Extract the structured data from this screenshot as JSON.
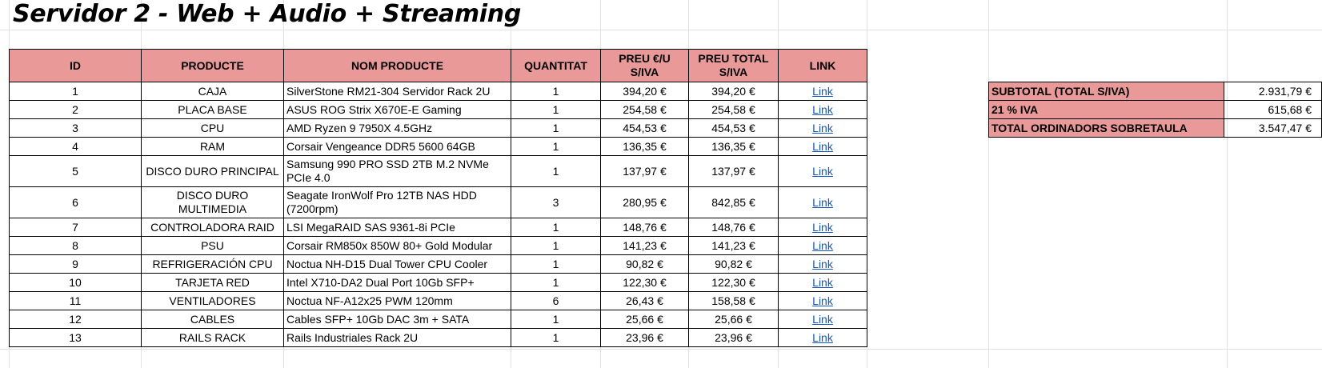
{
  "title": "Servidor 2 - Web + Audio + Streaming",
  "accent_color": "#ea9999",
  "link_color": "#1155cc",
  "table": {
    "headers": {
      "id": "ID",
      "producte": "PRODUCTE",
      "nom": "NOM PRODUCTE",
      "quantitat": "QUANTITAT",
      "preu_u": "PREU €/U S/IVA",
      "preu_total": "PREU TOTAL S/IVA",
      "link": "LINK"
    },
    "rows": [
      {
        "id": "1",
        "producte": "CAJA",
        "nom": "SilverStone RM21-304 Servidor Rack 2U",
        "quantitat": "1",
        "preu_u": "394,20 €",
        "preu_total": "394,20 €",
        "link": "Link"
      },
      {
        "id": "2",
        "producte": "PLACA BASE",
        "nom": "ASUS ROG Strix X670E-E Gaming",
        "quantitat": "1",
        "preu_u": "254,58 €",
        "preu_total": "254,58 €",
        "link": "Link"
      },
      {
        "id": "3",
        "producte": "CPU",
        "nom": "AMD Ryzen 9 7950X 4.5GHz",
        "quantitat": "1",
        "preu_u": "454,53 €",
        "preu_total": "454,53 €",
        "link": "Link"
      },
      {
        "id": "4",
        "producte": "RAM",
        "nom": "Corsair Vengeance DDR5 5600 64GB",
        "quantitat": "1",
        "preu_u": "136,35 €",
        "preu_total": "136,35 €",
        "link": "Link"
      },
      {
        "id": "5",
        "producte": "DISCO DURO PRINCIPAL",
        "nom": "Samsung 990 PRO SSD 2TB M.2 NVMe PCIe 4.0",
        "quantitat": "1",
        "preu_u": "137,97 €",
        "preu_total": "137,97 €",
        "link": "Link"
      },
      {
        "id": "6",
        "producte": "DISCO DURO MULTIMEDIA",
        "nom": "Seagate IronWolf Pro 12TB NAS HDD (7200rpm)",
        "quantitat": "3",
        "preu_u": "280,95 €",
        "preu_total": "842,85 €",
        "link": "Link"
      },
      {
        "id": "7",
        "producte": "CONTROLADORA RAID",
        "nom": "LSI MegaRAID SAS 9361-8i PCIe",
        "quantitat": "1",
        "preu_u": "148,76 €",
        "preu_total": "148,76 €",
        "link": "Link"
      },
      {
        "id": "8",
        "producte": "PSU",
        "nom": "Corsair RM850x 850W 80+ Gold Modular",
        "quantitat": "1",
        "preu_u": "141,23 €",
        "preu_total": "141,23 €",
        "link": "Link"
      },
      {
        "id": "9",
        "producte": "REFRIGERACIÓN CPU",
        "nom": "Noctua NH-D15 Dual Tower CPU Cooler",
        "quantitat": "1",
        "preu_u": "90,82 €",
        "preu_total": "90,82 €",
        "link": "Link"
      },
      {
        "id": "10",
        "producte": "TARJETA RED",
        "nom": "Intel X710-DA2 Dual Port 10Gb SFP+",
        "quantitat": "1",
        "preu_u": "122,30 €",
        "preu_total": "122,30 €",
        "link": "Link"
      },
      {
        "id": "11",
        "producte": "VENTILADORES",
        "nom": "Noctua NF-A12x25 PWM 120mm",
        "quantitat": "6",
        "preu_u": "26,43 €",
        "preu_total": "158,58 €",
        "link": "Link"
      },
      {
        "id": "12",
        "producte": "CABLES",
        "nom": "Cables SFP+ 10Gb DAC 3m + SATA",
        "quantitat": "1",
        "preu_u": "25,66 €",
        "preu_total": "25,66 €",
        "link": "Link"
      },
      {
        "id": "13",
        "producte": "RAILS RACK",
        "nom": "Rails Industriales Rack 2U",
        "quantitat": "1",
        "preu_u": "23,96 €",
        "preu_total": "23,96 €",
        "link": "Link"
      }
    ]
  },
  "summary": [
    {
      "label": "SUBTOTAL (TOTAL S/IVA)",
      "value": "2.931,79 €"
    },
    {
      "label": "21 % IVA",
      "value": "615,68 €"
    },
    {
      "label": "TOTAL ORDINADORS SOBRETAULA",
      "value": "3.547,47 €"
    }
  ]
}
